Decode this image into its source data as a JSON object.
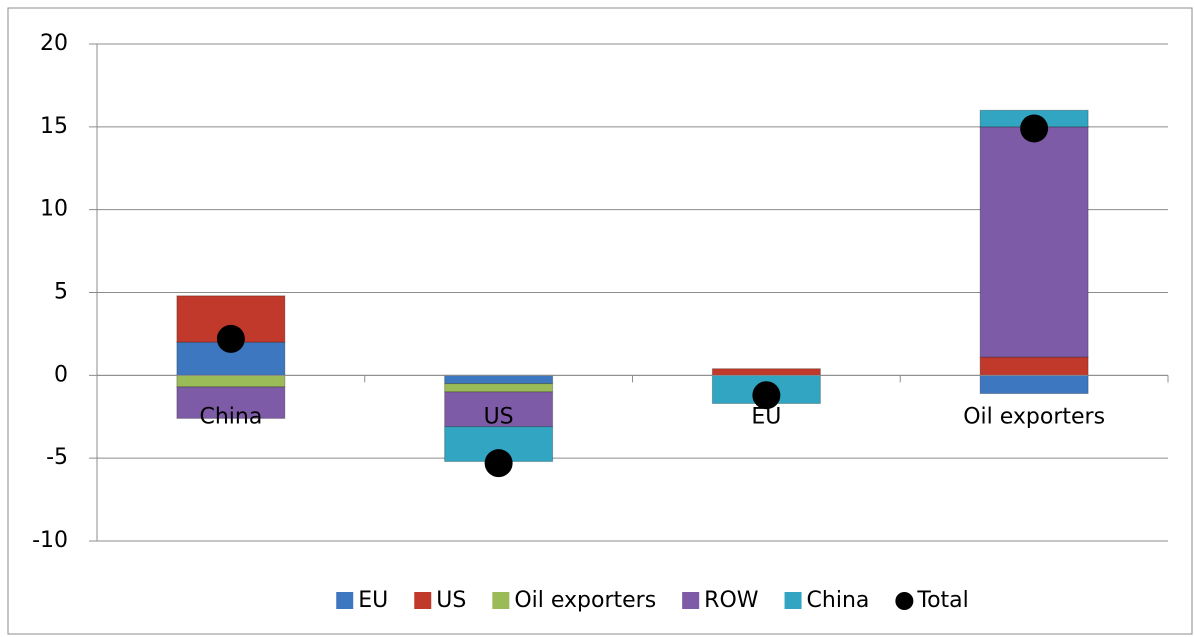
{
  "chart_data": {
    "type": "bar",
    "stacked": true,
    "categories": [
      "China",
      "US",
      "EU",
      "Oil exporters"
    ],
    "series": [
      {
        "name": "EU",
        "color": "#3d77c0",
        "values": [
          2.0,
          -0.5,
          0,
          -1.1
        ]
      },
      {
        "name": "US",
        "color": "#c0392b",
        "values": [
          2.8,
          0,
          0.4,
          1.1
        ]
      },
      {
        "name": "Oil exporters",
        "color": "#9bbb59",
        "values": [
          -0.7,
          -0.5,
          0,
          0
        ]
      },
      {
        "name": "ROW",
        "color": "#7d5ba6",
        "values": [
          -1.9,
          -2.1,
          0,
          13.9
        ]
      },
      {
        "name": "China",
        "color": "#31a5c2",
        "values": [
          0,
          -2.1,
          -1.7,
          1.0
        ]
      }
    ],
    "total": {
      "name": "Total",
      "color": "#000000",
      "values": [
        2.2,
        -5.3,
        -1.2,
        14.9
      ]
    },
    "ylim": [
      -10,
      20
    ],
    "yticks": [
      -10,
      -5,
      0,
      5,
      10,
      15,
      20
    ],
    "grid": true
  }
}
